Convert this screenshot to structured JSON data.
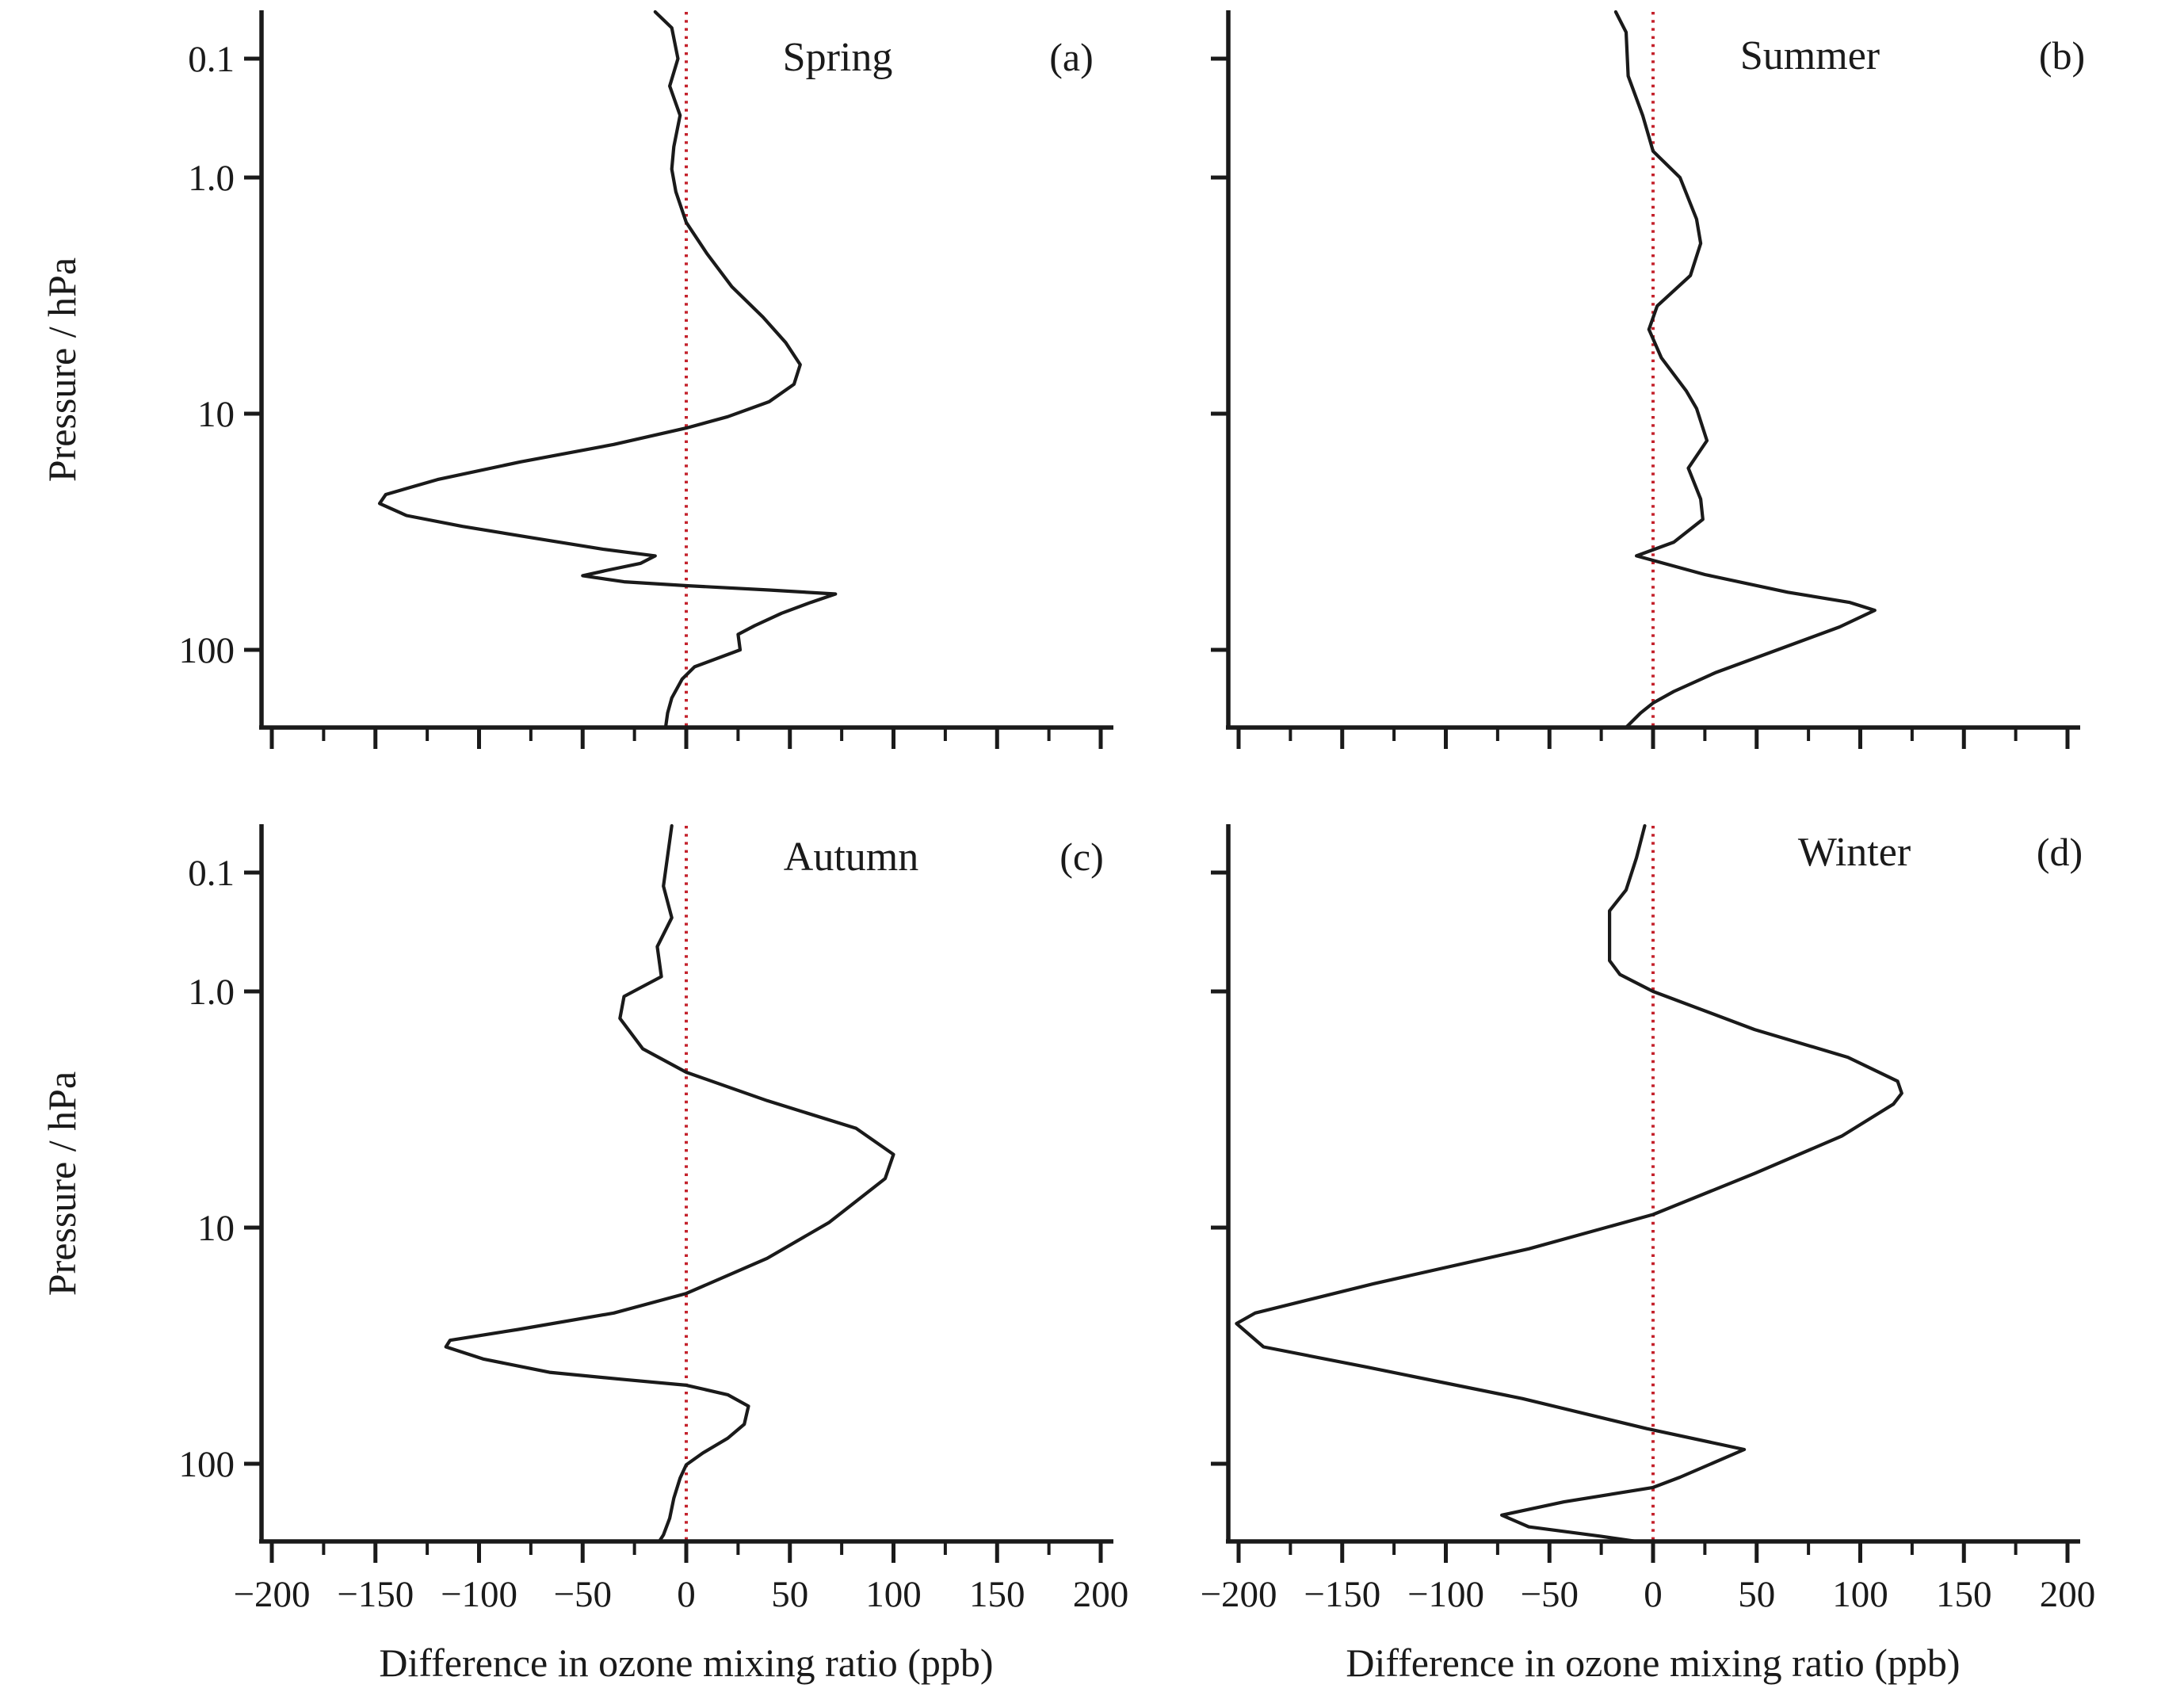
{
  "figure": {
    "x_axis_title": "Difference in ozone mixing ratio (ppb)",
    "y_axis_title": "Pressure / hPa",
    "x_tick_labels": [
      "−200",
      "−150",
      "−100",
      "−50",
      "0",
      "50",
      "100",
      "150",
      "200"
    ],
    "x_tick_values": [
      -200,
      -150,
      -100,
      -50,
      0,
      50,
      100,
      150,
      200
    ],
    "x_minor_tick_step": 25,
    "y_tick_labels": [
      "0.1",
      "1.0",
      "10",
      "100"
    ],
    "y_tick_values": [
      0.1,
      1.0,
      10,
      100
    ],
    "colors": {
      "curve": "#1a1a1a",
      "zero_line": "#c4222c",
      "axis": "#1a1a1a",
      "text": "#1a1a1a",
      "background": "#ffffff"
    }
  },
  "chart_data": [
    {
      "type": "line",
      "title": "Spring",
      "panel_label": "(a)",
      "xlabel": "Difference in ozone mixing ratio (ppb)",
      "ylabel": "Pressure / hPa",
      "xlim": [
        -200,
        200
      ],
      "y_scale": "log, inverted (pressure decreasing upward)",
      "ylim_hPa": [
        0.04,
        213
      ],
      "grid": false,
      "zero_reference_line_x": 0,
      "series": [
        {
          "name": "ozone mixing ratio difference profile",
          "points_ppb_vs_hPa": [
            [
              -15,
              0.04
            ],
            [
              -7,
              0.055
            ],
            [
              -4,
              0.1
            ],
            [
              -8,
              0.17
            ],
            [
              -3,
              0.3
            ],
            [
              -6,
              0.55
            ],
            [
              -7,
              0.85
            ],
            [
              -5,
              1.15
            ],
            [
              0,
              1.55
            ],
            [
              10,
              2.1
            ],
            [
              22,
              2.9
            ],
            [
              37,
              3.9
            ],
            [
              48,
              5
            ],
            [
              55,
              6.2
            ],
            [
              52,
              7.5
            ],
            [
              40,
              8.9
            ],
            [
              20,
              10.3
            ],
            [
              0,
              11.5
            ],
            [
              -35,
              13.5
            ],
            [
              -80,
              16
            ],
            [
              -120,
              19
            ],
            [
              -145,
              22
            ],
            [
              -148,
              24
            ],
            [
              -135,
              27
            ],
            [
              -108,
              30
            ],
            [
              -70,
              34
            ],
            [
              -40,
              37.5
            ],
            [
              -15,
              40
            ],
            [
              -22,
              43
            ],
            [
              -38,
              46
            ],
            [
              -50,
              48.5
            ],
            [
              -30,
              51.5
            ],
            [
              0,
              53.5
            ],
            [
              40,
              55.8
            ],
            [
              72,
              58
            ],
            [
              60,
              63
            ],
            [
              46,
              70
            ],
            [
              33,
              79
            ],
            [
              25,
              86
            ],
            [
              26,
              100
            ],
            [
              4,
              118
            ],
            [
              -2,
              133
            ],
            [
              -7,
              160
            ],
            [
              -9,
              185
            ],
            [
              -10,
              213
            ]
          ]
        }
      ]
    },
    {
      "type": "line",
      "title": "Summer",
      "panel_label": "(b)",
      "xlabel": "Difference in ozone mixing ratio (ppb)",
      "ylabel": "Pressure / hPa",
      "xlim": [
        -200,
        200
      ],
      "y_scale": "log, inverted (pressure decreasing upward)",
      "ylim_hPa": [
        0.04,
        213
      ],
      "grid": false,
      "zero_reference_line_x": 0,
      "series": [
        {
          "name": "ozone mixing ratio difference profile",
          "points_ppb_vs_hPa": [
            [
              -18,
              0.04
            ],
            [
              -13,
              0.06
            ],
            [
              -12,
              0.14
            ],
            [
              -5,
              0.3
            ],
            [
              0,
              0.6
            ],
            [
              13,
              1
            ],
            [
              21,
              1.5
            ],
            [
              23,
              1.9
            ],
            [
              18,
              2.6
            ],
            [
              2,
              3.5
            ],
            [
              -2,
              4.4
            ],
            [
              4,
              5.8
            ],
            [
              16,
              8
            ],
            [
              21,
              9.5
            ],
            [
              26,
              13
            ],
            [
              17,
              17
            ],
            [
              23,
              23
            ],
            [
              24,
              28
            ],
            [
              10,
              35
            ],
            [
              -8,
              40
            ],
            [
              25,
              48
            ],
            [
              65,
              57
            ],
            [
              95,
              63
            ],
            [
              107,
              68
            ],
            [
              90,
              80
            ],
            [
              60,
              100
            ],
            [
              30,
              125
            ],
            [
              10,
              150
            ],
            [
              0,
              168
            ],
            [
              -6,
              185
            ],
            [
              -13,
              213
            ]
          ]
        }
      ]
    },
    {
      "type": "line",
      "title": "Autumn",
      "panel_label": "(c)",
      "xlabel": "Difference in ozone mixing ratio (ppb)",
      "ylabel": "Pressure / hPa",
      "xlim": [
        -200,
        200
      ],
      "y_scale": "log, inverted (pressure decreasing upward)",
      "ylim_hPa": [
        0.04,
        213
      ],
      "grid": false,
      "zero_reference_line_x": 0,
      "series": [
        {
          "name": "ozone mixing ratio difference profile",
          "points_ppb_vs_hPa": [
            [
              -7,
              0.04
            ],
            [
              -11,
              0.13
            ],
            [
              -7,
              0.24
            ],
            [
              -14,
              0.42
            ],
            [
              -12,
              0.75
            ],
            [
              -30,
              1.05
            ],
            [
              -32,
              1.3
            ],
            [
              -21,
              1.75
            ],
            [
              0,
              2.2
            ],
            [
              39,
              2.9
            ],
            [
              82,
              3.8
            ],
            [
              100,
              4.9
            ],
            [
              96,
              6.2
            ],
            [
              69,
              9.5
            ],
            [
              39,
              13.5
            ],
            [
              0,
              19
            ],
            [
              -35,
              23
            ],
            [
              -81,
              27
            ],
            [
              -114,
              30
            ],
            [
              -116,
              32
            ],
            [
              -98,
              36
            ],
            [
              -66,
              41
            ],
            [
              -30,
              44
            ],
            [
              0,
              46.5
            ],
            [
              20,
              51
            ],
            [
              30,
              57
            ],
            [
              28,
              68
            ],
            [
              20,
              78
            ],
            [
              8,
              90
            ],
            [
              0,
              101
            ],
            [
              -3,
              115
            ],
            [
              -6,
              140
            ],
            [
              -8,
              170
            ],
            [
              -11,
              200
            ],
            [
              -13,
              213
            ]
          ]
        }
      ]
    },
    {
      "type": "line",
      "title": "Winter",
      "panel_label": "(d)",
      "xlabel": "Difference in ozone mixing ratio (ppb)",
      "ylabel": "Pressure / hPa",
      "xlim": [
        -200,
        200
      ],
      "y_scale": "log, inverted (pressure decreasing upward)",
      "ylim_hPa": [
        0.04,
        213
      ],
      "grid": false,
      "zero_reference_line_x": 0,
      "series": [
        {
          "name": "ozone mixing ratio difference profile",
          "points_ppb_vs_hPa": [
            [
              -4,
              0.04
            ],
            [
              -8,
              0.075
            ],
            [
              -13,
              0.14
            ],
            [
              -21,
              0.21
            ],
            [
              -21,
              0.55
            ],
            [
              -16,
              0.72
            ],
            [
              0,
              1
            ],
            [
              49,
              1.45
            ],
            [
              94,
              1.9
            ],
            [
              118,
              2.4
            ],
            [
              120,
              2.7
            ],
            [
              116,
              3
            ],
            [
              91,
              4.1
            ],
            [
              49,
              5.9
            ],
            [
              0,
              8.8
            ],
            [
              -60,
              12.3
            ],
            [
              -135,
              17.3
            ],
            [
              -192,
              23
            ],
            [
              -201,
              25.5
            ],
            [
              -188,
              32
            ],
            [
              -138,
              39
            ],
            [
              -63,
              53
            ],
            [
              -3,
              71
            ],
            [
              44,
              87
            ],
            [
              13,
              114
            ],
            [
              0,
              126
            ],
            [
              -43,
              145
            ],
            [
              -73,
              165
            ],
            [
              -60,
              185
            ],
            [
              -25,
              203
            ],
            [
              -8,
              213
            ]
          ]
        }
      ]
    }
  ]
}
